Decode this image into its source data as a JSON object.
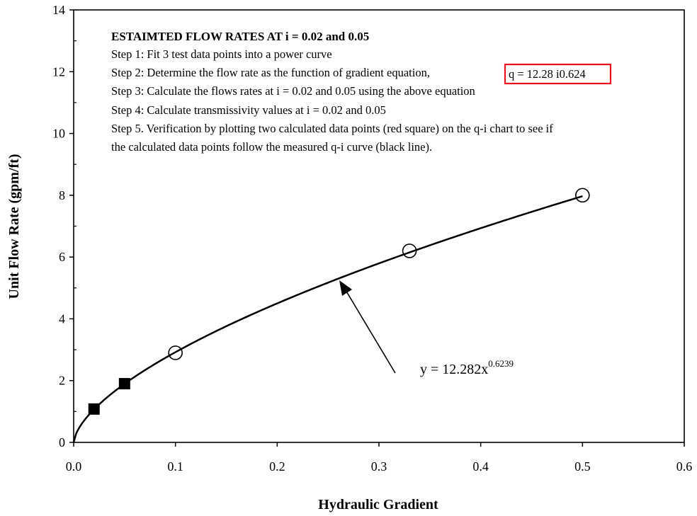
{
  "chart_data": {
    "type": "scatter",
    "xlabel": "Hydraulic Gradient",
    "ylabel": "Unit Flow Rate (gpm/ft)",
    "xlim": [
      0,
      0.6
    ],
    "ylim": [
      0,
      14
    ],
    "x_ticks": [
      "0.0",
      "0.1",
      "0.2",
      "0.3",
      "0.4",
      "0.5",
      "0.6"
    ],
    "y_ticks": [
      "0",
      "2",
      "4",
      "6",
      "8",
      "10",
      "12",
      "14"
    ],
    "grid": false,
    "series": [
      {
        "marker": "open-circle",
        "x": [
          0.1,
          0.33,
          0.5
        ],
        "y": [
          2.9,
          6.2,
          8.0
        ]
      },
      {
        "marker": "filled-square",
        "x": [
          0.02,
          0.05
        ],
        "y": [
          1.08,
          1.9
        ]
      }
    ],
    "fit_curve": {
      "coefficient": 12.282,
      "exponent": 0.6239,
      "x_range": [
        0,
        0.5
      ],
      "color": "#000000"
    },
    "annotation": {
      "title": "ESTAIMTED FLOW RATES AT i = 0.02 and 0.05",
      "lines": [
        "Step 1: Fit 3 test data points into a power curve",
        "Step 2: Determine the flow rate as the function of gradient equation,",
        "Step 3: Calculate the flows rates at i = 0.02 and 0.05 using the above equation",
        "Step 4: Calculate transmissivity values at i = 0.02 and 0.05",
        "Step 5.  Verification by plotting two calculated data points (red square) on the q-i chart to see if",
        "the calculated data points follow the measured q-i curve (black line)."
      ],
      "equation_box": "q = 12.28 i0.624",
      "box_color": "#e8101c"
    },
    "fit_label": {
      "base": "y = 12.282x",
      "exponent": "0.6239"
    }
  }
}
